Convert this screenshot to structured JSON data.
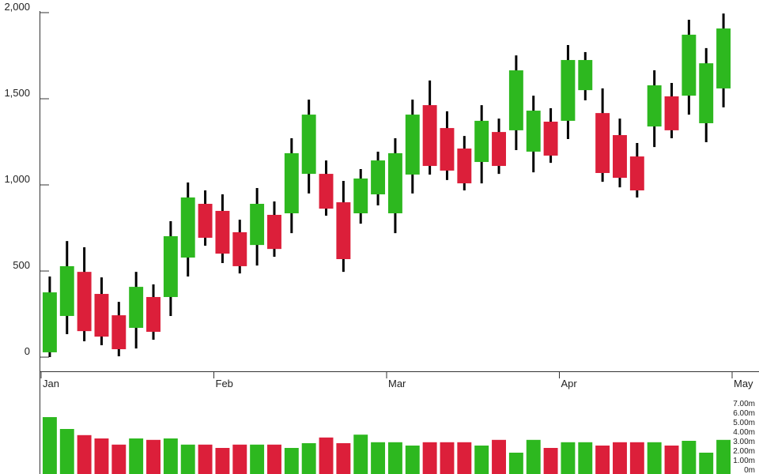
{
  "chart_data": [
    {
      "type": "candlestick",
      "x": [
        0.5,
        1.5,
        2.5,
        3.5,
        4.5,
        5.5,
        6.5,
        7.5,
        8.5,
        9.5,
        10.5,
        11.5,
        12.5,
        13.5,
        14.5,
        15.5,
        16.5,
        17.5,
        18.5,
        19.5,
        20.5,
        21.5,
        22.5,
        23.5,
        24.5,
        25.5,
        26.5,
        27.5,
        28.5,
        29.5,
        30.5,
        31.5,
        32.5,
        33.5,
        34.5,
        35.5,
        36.5,
        37.5,
        38.5,
        39.5
      ],
      "open": [
        28,
        239,
        495,
        367,
        243,
        170,
        349,
        349,
        578,
        890,
        849,
        725,
        651,
        826,
        835,
        1064,
        1064,
        899,
        835,
        945,
        835,
        1060,
        1463,
        1330,
        1211,
        1133,
        1307,
        1317,
        1193,
        1367,
        1372,
        1550,
        1417,
        1289,
        1165,
        1339,
        1514,
        1518,
        1358,
        1560
      ],
      "high": [
        468,
        674,
        638,
        463,
        321,
        495,
        422,
        789,
        1014,
        968,
        945,
        798,
        982,
        904,
        1271,
        1495,
        1142,
        1023,
        1092,
        1193,
        1271,
        1495,
        1606,
        1427,
        1284,
        1463,
        1385,
        1752,
        1518,
        1445,
        1812,
        1771,
        1560,
        1385,
        1243,
        1665,
        1592,
        1959,
        1794,
        1995
      ],
      "low": [
        0,
        133,
        92,
        69,
        5,
        50,
        101,
        239,
        468,
        647,
        546,
        486,
        532,
        583,
        720,
        950,
        821,
        495,
        775,
        881,
        720,
        950,
        1060,
        1028,
        968,
        1009,
        1064,
        1202,
        1073,
        1128,
        1266,
        1491,
        1018,
        986,
        927,
        1220,
        1271,
        1408,
        1248,
        1450
      ],
      "close": [
        376,
        528,
        151,
        119,
        46,
        408,
        147,
        702,
        927,
        693,
        601,
        528,
        890,
        628,
        1184,
        1408,
        862,
        569,
        1037,
        1142,
        1184,
        1408,
        1110,
        1083,
        1009,
        1372,
        1110,
        1665,
        1431,
        1170,
        1725,
        1725,
        1069,
        1041,
        968,
        1578,
        1317,
        1872,
        1706,
        1908
      ],
      "up_color": "#2db81f",
      "down_color": "#dc1f3a",
      "xlim": [
        0,
        40
      ],
      "xticks": [
        {
          "value": 0,
          "label": "Jan"
        },
        {
          "value": 10,
          "label": "Feb"
        },
        {
          "value": 20,
          "label": "Mar"
        },
        {
          "value": 30,
          "label": "Apr"
        },
        {
          "value": 40,
          "label": "May"
        }
      ],
      "ylim": [
        -80,
        2000
      ],
      "yticks": [
        0,
        500,
        {
          "value": 1000,
          "label": "1,000"
        },
        {
          "value": 1500,
          "label": "1,500"
        },
        {
          "value": 2000,
          "label": "2,000"
        }
      ]
    },
    {
      "type": "bar",
      "values": [
        6.0,
        4.75,
        4.1,
        3.75,
        3.1,
        3.75,
        3.6,
        3.75,
        3.1,
        3.1,
        2.75,
        3.1,
        3.1,
        3.1,
        2.75,
        3.25,
        3.85,
        3.25,
        4.15,
        3.35,
        3.35,
        3.0,
        3.35,
        3.35,
        3.35,
        3.0,
        3.6,
        2.25,
        3.6,
        2.75,
        3.35,
        3.35,
        3.0,
        3.35,
        3.35,
        3.35,
        3.0,
        3.5,
        2.25,
        3.6
      ],
      "ylim": [
        0,
        7
      ],
      "yticks": [
        {
          "value": 0,
          "label": "0m"
        },
        {
          "value": 1,
          "label": "1.00m"
        },
        {
          "value": 2,
          "label": "2.00m"
        },
        {
          "value": 3,
          "label": "3.00m"
        },
        {
          "value": 4,
          "label": "4.00m"
        },
        {
          "value": 5,
          "label": "5.00m"
        },
        {
          "value": 6,
          "label": "6.00m"
        },
        {
          "value": 7,
          "label": "7.00m"
        }
      ]
    }
  ]
}
